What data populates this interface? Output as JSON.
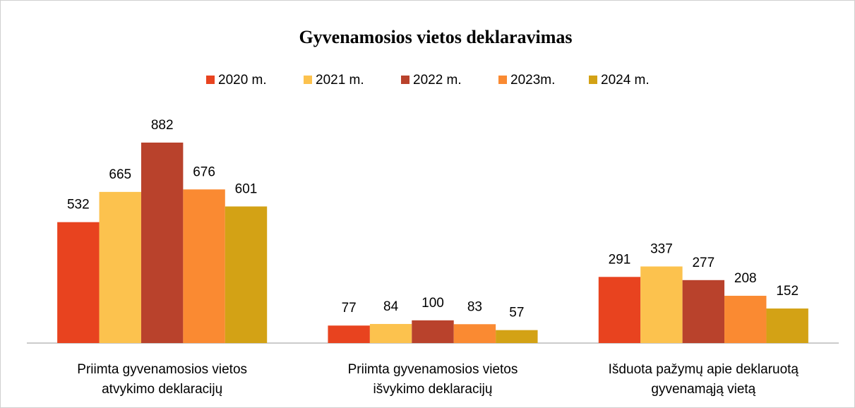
{
  "chart_data": {
    "type": "bar",
    "title": "Gyvenamosios vietos deklaravimas",
    "categories": [
      "Priimta gyvenamosios vietos atvykimo deklaracijų",
      "Priimta gyvenamosios vietos išvykimo deklaracijų",
      "Išduota pažymų apie deklaruotą gyvenamąją vietą"
    ],
    "series": [
      {
        "name": "2020 m.",
        "color": "#e8431f",
        "values": [
          532,
          77,
          291
        ]
      },
      {
        "name": "2021 m.",
        "color": "#fcc24e",
        "values": [
          665,
          84,
          337
        ]
      },
      {
        "name": "2022 m.",
        "color": "#b9422c",
        "values": [
          882,
          100,
          277
        ]
      },
      {
        "name": "2023m.",
        "color": "#fa8a32",
        "values": [
          676,
          83,
          208
        ]
      },
      {
        "name": "2024 m.",
        "color": "#d3a215",
        "values": [
          601,
          57,
          152
        ]
      }
    ],
    "legend": "top"
  }
}
